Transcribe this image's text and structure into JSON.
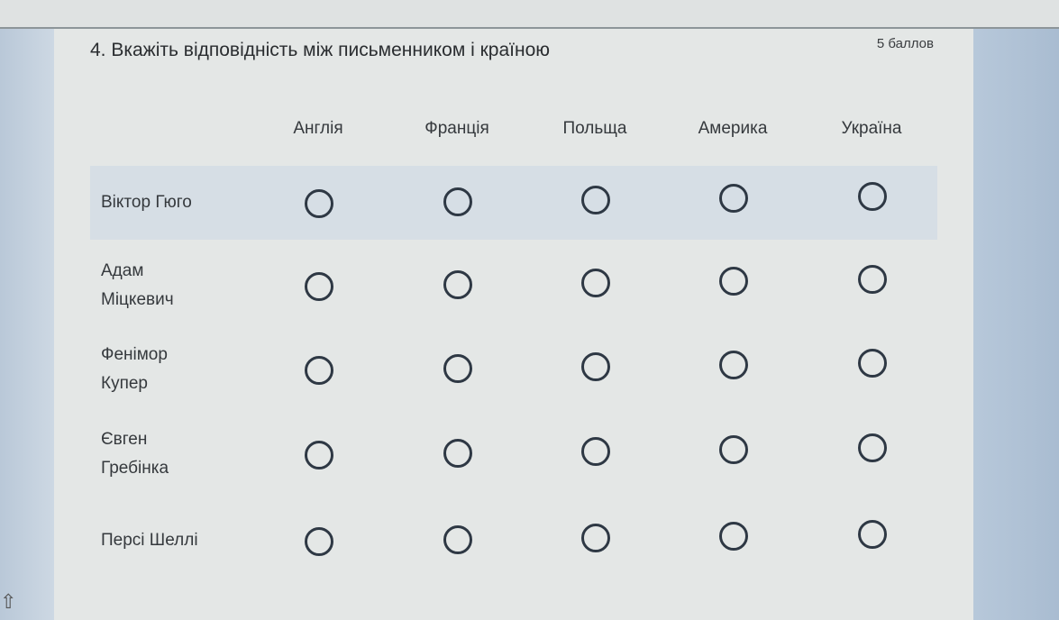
{
  "question": {
    "title": "4. Вкажіть відповідність між письменником і країною",
    "points": "5 баллов",
    "columns": [
      "Англія",
      "Франція",
      "Польща",
      "Америка",
      "Україна"
    ],
    "rows": [
      {
        "line1": "Віктор Гюго",
        "line2": ""
      },
      {
        "line1": "Адам",
        "line2": "Міцкевич"
      },
      {
        "line1": "Фенімор",
        "line2": "Купер"
      },
      {
        "line1": "Євген",
        "line2": "Гребінка"
      },
      {
        "line1": "Персі Шеллі",
        "line2": ""
      }
    ],
    "selected": [
      null,
      null,
      null,
      null,
      null
    ]
  },
  "colors": {
    "radio_border": "#2e3844",
    "highlight_row": "#d6dee5",
    "card": "#e4e7e6"
  }
}
